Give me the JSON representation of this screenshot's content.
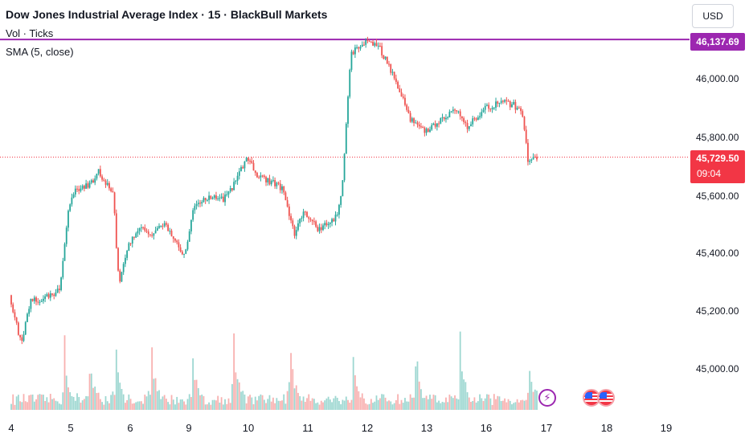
{
  "header": {
    "title": "Dow Jones Industrial Average Index · 15 · BlackBull Markets",
    "volume_label": "Vol · Ticks",
    "sma_label": "SMA (5, close)"
  },
  "toolbar": {
    "currency": "USD"
  },
  "price_line": {
    "value": "46,137.69",
    "color": "#9c27b0"
  },
  "last_price": {
    "value": "45,729.50",
    "countdown": "09:04",
    "color": "#f23645"
  },
  "colors": {
    "up": "#26a69a",
    "down": "#ef5350"
  },
  "events": {
    "icons": [
      "lightning-icon",
      "us-flag-icon",
      "us-flag-icon"
    ]
  },
  "chart_data": {
    "type": "candlestick",
    "y_axis_labels": [
      "46,000.00",
      "45,800.00",
      "45,600.00",
      "45,400.00",
      "45,200.00",
      "45,000.00"
    ],
    "x_axis_labels": [
      "4",
      "5",
      "6",
      "9",
      "10",
      "11",
      "12",
      "13",
      "16",
      "17",
      "18",
      "19"
    ],
    "ylim": [
      44890,
      46180
    ],
    "grid": false,
    "price_path": [
      [
        4,
        45250
      ],
      [
        4.2,
        45080
      ],
      [
        4.35,
        45230
      ],
      [
        4.6,
        45240
      ],
      [
        4.85,
        45270
      ],
      [
        5.0,
        45560
      ],
      [
        5.1,
        45620
      ],
      [
        5.35,
        45630
      ],
      [
        5.5,
        45680
      ],
      [
        5.75,
        45600
      ],
      [
        5.8,
        45420
      ],
      [
        5.85,
        45290
      ],
      [
        6.0,
        45420
      ],
      [
        6.2,
        45490
      ],
      [
        6.4,
        45460
      ],
      [
        6.6,
        45500
      ],
      [
        6.8,
        45440
      ],
      [
        6.95,
        45380
      ],
      [
        7.1,
        45560
      ],
      [
        7.4,
        45590
      ],
      [
        7.6,
        45580
      ],
      [
        7.8,
        45640
      ],
      [
        8.0,
        45730
      ],
      [
        8.2,
        45660
      ],
      [
        8.45,
        45640
      ],
      [
        8.6,
        45620
      ],
      [
        8.8,
        45460
      ],
      [
        8.95,
        45540
      ],
      [
        9.2,
        45480
      ],
      [
        9.5,
        45520
      ],
      [
        9.6,
        45620
      ],
      [
        9.75,
        46090
      ],
      [
        10.0,
        46130
      ],
      [
        10.2,
        46120
      ],
      [
        10.45,
        46020
      ],
      [
        10.6,
        45950
      ],
      [
        10.75,
        45860
      ],
      [
        11.0,
        45820
      ],
      [
        11.3,
        45860
      ],
      [
        11.5,
        45900
      ],
      [
        11.7,
        45830
      ],
      [
        12.0,
        45900
      ],
      [
        12.3,
        45920
      ],
      [
        12.5,
        45910
      ],
      [
        12.65,
        45870
      ],
      [
        12.73,
        45720
      ],
      [
        12.85,
        45730
      ]
    ],
    "volume_peaks": [
      4.9,
      5.3,
      5.75,
      6.35,
      7.05,
      7.75,
      8.7,
      9.75,
      10.8,
      11.55,
      12.7
    ]
  }
}
